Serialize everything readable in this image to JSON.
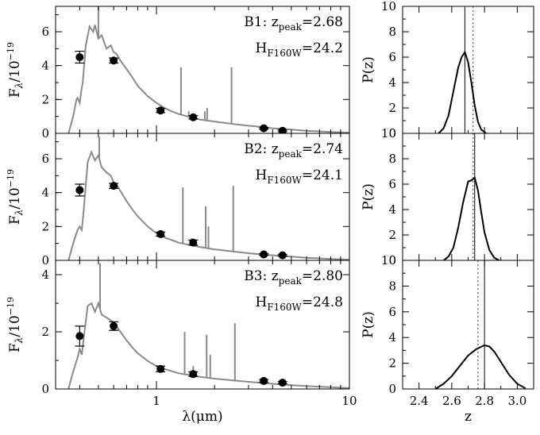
{
  "figure": {
    "type": "multi-panel",
    "xlabel_sed": "λ(μm)",
    "xlabel_pz": "z",
    "colors": {
      "sed": "#8a8a8a",
      "points": "#000000",
      "pz": "#000000",
      "frame": "#000000"
    }
  },
  "chart_data": [
    {
      "type": "line",
      "panel": "B1-SED",
      "ylabel": "Fλ/10⁻¹⁹",
      "ylabel_main": "F",
      "ylabel_sub": "λ",
      "ylabel_rest": "/10",
      "ylabel_sup": "−19",
      "xscale": "log",
      "xlim": [
        0.3,
        10
      ],
      "ylim": [
        0,
        7.5
      ],
      "xticks": [
        1,
        10
      ],
      "xticklabels": [
        "1",
        "10"
      ],
      "yticks": [
        0,
        2,
        4,
        6
      ],
      "yticklabels": [
        "0",
        "2",
        "4",
        "6"
      ],
      "label": "B1",
      "zpeak": "2.68",
      "hmag": "24.2",
      "model": {
        "x": [
          0.35,
          0.37,
          0.385,
          0.39,
          0.4,
          0.41,
          0.415,
          0.43,
          0.45,
          0.47,
          0.48,
          0.5,
          0.52,
          0.55,
          0.58,
          0.6,
          0.62,
          0.65,
          0.7,
          0.75,
          0.8,
          0.9,
          1.0,
          1.1,
          1.2,
          1.3,
          1.5,
          1.7,
          2.0,
          2.5,
          3.0,
          3.5,
          4.0,
          5.0,
          6.0,
          8.0,
          10.0
        ],
        "y": [
          0.0,
          1.0,
          2.0,
          2.1,
          1.8,
          2.7,
          3.0,
          5.2,
          6.3,
          6.0,
          6.4,
          5.6,
          5.8,
          5.0,
          5.2,
          4.8,
          4.7,
          4.3,
          3.8,
          3.3,
          2.8,
          2.2,
          1.8,
          1.5,
          1.3,
          1.15,
          0.95,
          0.8,
          0.7,
          0.55,
          0.45,
          0.38,
          0.3,
          0.22,
          0.15,
          0.08,
          0.04
        ]
      },
      "spikes": [
        {
          "x": 0.5,
          "y": 7.5
        },
        {
          "x": 1.34,
          "y": 3.9
        },
        {
          "x": 1.47,
          "y": 1.3
        },
        {
          "x": 1.78,
          "y": 1.3
        },
        {
          "x": 1.83,
          "y": 1.5
        },
        {
          "x": 2.45,
          "y": 3.9
        }
      ],
      "points": [
        {
          "x": 0.4,
          "y": 4.5,
          "err": 0.35
        },
        {
          "x": 0.6,
          "y": 4.3,
          "err": 0.15
        },
        {
          "x": 1.05,
          "y": 1.35,
          "err": 0.12
        },
        {
          "x": 1.55,
          "y": 0.95,
          "err": 0.1
        },
        {
          "x": 3.6,
          "y": 0.3,
          "err": 0.05
        },
        {
          "x": 4.5,
          "y": 0.15,
          "err": 0.05
        }
      ]
    },
    {
      "type": "line",
      "panel": "B1-Pz",
      "ylabel": "P(z)",
      "xlim": [
        2.3,
        3.1
      ],
      "ylim": [
        0,
        10
      ],
      "xticks": [
        2.4,
        2.6,
        2.8,
        3.0
      ],
      "xticklabels": [
        "2.4",
        "2.6",
        "2.8",
        "3.0"
      ],
      "yticks": [
        0,
        2,
        4,
        6,
        8,
        10
      ],
      "yticklabels": [
        "0",
        "2",
        "4",
        "6",
        "8",
        "10"
      ],
      "zpeak_line": 2.68,
      "dotted_line": 2.73,
      "pz": {
        "x": [
          2.52,
          2.55,
          2.58,
          2.61,
          2.64,
          2.66,
          2.68,
          2.7,
          2.72,
          2.74,
          2.76,
          2.78,
          2.81
        ],
        "y": [
          0.0,
          0.4,
          1.4,
          3.3,
          5.2,
          6.0,
          6.4,
          5.6,
          4.0,
          2.2,
          0.9,
          0.3,
          0.0
        ]
      }
    },
    {
      "type": "line",
      "panel": "B2-SED",
      "ylabel": "Fλ/10⁻¹⁹",
      "ylabel_main": "F",
      "ylabel_sub": "λ",
      "ylabel_rest": "/10",
      "ylabel_sup": "−19",
      "xscale": "log",
      "xlim": [
        0.3,
        10
      ],
      "ylim": [
        0,
        7.5
      ],
      "xticks": [
        1,
        10
      ],
      "xticklabels": [
        "1",
        "10"
      ],
      "yticks": [
        0,
        2,
        4,
        6
      ],
      "yticklabels": [
        "0",
        "2",
        "4",
        "6"
      ],
      "label": "B2",
      "zpeak": "2.74",
      "hmag": "24.1",
      "model": {
        "x": [
          0.35,
          0.37,
          0.39,
          0.4,
          0.41,
          0.42,
          0.44,
          0.46,
          0.48,
          0.5,
          0.52,
          0.55,
          0.58,
          0.6,
          0.62,
          0.65,
          0.7,
          0.75,
          0.8,
          0.9,
          1.0,
          1.1,
          1.2,
          1.3,
          1.5,
          1.7,
          2.0,
          2.5,
          3.0,
          3.5,
          4.0,
          5.0,
          6.0,
          8.0,
          10.0
        ],
        "y": [
          0.0,
          1.0,
          1.8,
          2.0,
          1.8,
          3.0,
          5.8,
          6.4,
          5.9,
          6.2,
          5.5,
          5.2,
          5.0,
          4.6,
          4.5,
          4.1,
          3.5,
          3.0,
          2.6,
          2.0,
          1.6,
          1.35,
          1.2,
          1.05,
          0.9,
          0.78,
          0.65,
          0.52,
          0.42,
          0.35,
          0.3,
          0.22,
          0.15,
          0.08,
          0.04
        ]
      },
      "spikes": [
        {
          "x": 0.505,
          "y": 7.3
        },
        {
          "x": 1.37,
          "y": 4.3
        },
        {
          "x": 1.52,
          "y": 1.3
        },
        {
          "x": 1.8,
          "y": 3.2
        },
        {
          "x": 1.86,
          "y": 2.0
        },
        {
          "x": 2.5,
          "y": 4.4
        }
      ],
      "points": [
        {
          "x": 0.4,
          "y": 4.15,
          "err": 0.35
        },
        {
          "x": 0.6,
          "y": 4.4,
          "err": 0.15
        },
        {
          "x": 1.05,
          "y": 1.55,
          "err": 0.12
        },
        {
          "x": 1.55,
          "y": 1.05,
          "err": 0.15
        },
        {
          "x": 3.6,
          "y": 0.35,
          "err": 0.05
        },
        {
          "x": 4.5,
          "y": 0.3,
          "err": 0.05
        }
      ]
    },
    {
      "type": "line",
      "panel": "B2-Pz",
      "ylabel": "P(z)",
      "xlim": [
        2.3,
        3.1
      ],
      "ylim": [
        0,
        10
      ],
      "xticks": [
        2.4,
        2.6,
        2.8,
        3.0
      ],
      "xticklabels": [
        "2.4",
        "2.6",
        "2.8",
        "3.0"
      ],
      "yticks": [
        0,
        2,
        4,
        6,
        8,
        10
      ],
      "yticklabels": [
        "0",
        "2",
        "4",
        "6",
        "8",
        "10"
      ],
      "zpeak_line": 2.74,
      "dotted_line": 2.73,
      "pz": {
        "x": [
          2.55,
          2.58,
          2.61,
          2.64,
          2.67,
          2.7,
          2.72,
          2.74,
          2.76,
          2.78,
          2.8,
          2.83,
          2.86,
          2.89
        ],
        "y": [
          0.0,
          0.3,
          1.0,
          2.6,
          4.6,
          6.2,
          6.3,
          6.5,
          5.5,
          3.8,
          2.2,
          0.8,
          0.2,
          0.0
        ]
      }
    },
    {
      "type": "line",
      "panel": "B3-SED",
      "ylabel": "Fλ/10⁻¹⁹",
      "ylabel_main": "F",
      "ylabel_sub": "λ",
      "ylabel_rest": "/10",
      "ylabel_sup": "−19",
      "xscale": "log",
      "xlim": [
        0.3,
        10
      ],
      "ylim": [
        0,
        4.5
      ],
      "xticks": [
        1,
        10
      ],
      "xticklabels": [
        "1",
        "10"
      ],
      "yticks": [
        0,
        2,
        4
      ],
      "yticklabels": [
        "0",
        "2",
        "4"
      ],
      "label": "B3",
      "zpeak": "2.80",
      "hmag": "24.8",
      "model": {
        "x": [
          0.35,
          0.37,
          0.39,
          0.4,
          0.41,
          0.42,
          0.44,
          0.46,
          0.48,
          0.5,
          0.52,
          0.55,
          0.58,
          0.6,
          0.62,
          0.65,
          0.7,
          0.75,
          0.8,
          0.9,
          1.0,
          1.1,
          1.2,
          1.3,
          1.5,
          1.7,
          2.0,
          2.5,
          3.0,
          3.5,
          4.0,
          5.0,
          6.0,
          8.0,
          10.0
        ],
        "y": [
          0.0,
          0.6,
          1.1,
          1.4,
          1.2,
          1.8,
          2.9,
          3.0,
          2.7,
          3.0,
          2.6,
          2.5,
          2.4,
          2.3,
          2.2,
          2.0,
          1.7,
          1.45,
          1.25,
          0.98,
          0.8,
          0.7,
          0.62,
          0.55,
          0.48,
          0.42,
          0.36,
          0.3,
          0.25,
          0.21,
          0.18,
          0.13,
          0.1,
          0.06,
          0.03
        ]
      },
      "spikes": [
        {
          "x": 0.51,
          "y": 4.4
        },
        {
          "x": 1.4,
          "y": 2.0
        },
        {
          "x": 1.55,
          "y": 0.8
        },
        {
          "x": 1.82,
          "y": 1.9
        },
        {
          "x": 1.9,
          "y": 1.2
        },
        {
          "x": 2.55,
          "y": 2.3
        }
      ],
      "points": [
        {
          "x": 0.4,
          "y": 1.85,
          "err": 0.35
        },
        {
          "x": 0.6,
          "y": 2.2,
          "err": 0.15
        },
        {
          "x": 1.05,
          "y": 0.7,
          "err": 0.1
        },
        {
          "x": 1.55,
          "y": 0.52,
          "err": 0.08
        },
        {
          "x": 3.6,
          "y": 0.28,
          "err": 0.05
        },
        {
          "x": 4.5,
          "y": 0.22,
          "err": 0.04
        }
      ]
    },
    {
      "type": "line",
      "panel": "B3-Pz",
      "ylabel": "P(z)",
      "xlim": [
        2.3,
        3.1
      ],
      "ylim": [
        0,
        10
      ],
      "xticks": [
        2.4,
        2.6,
        2.8,
        3.0
      ],
      "xticklabels": [
        "2.4",
        "2.6",
        "2.8",
        "3.0"
      ],
      "yticks": [
        0,
        2,
        4,
        6,
        8,
        10
      ],
      "yticklabels": [
        "0",
        "2",
        "4",
        "6",
        "8",
        "10"
      ],
      "zpeak_line": 2.8,
      "dotted_line": 2.76,
      "pz": {
        "x": [
          2.5,
          2.55,
          2.6,
          2.65,
          2.7,
          2.75,
          2.8,
          2.83,
          2.86,
          2.9,
          2.95,
          3.0,
          3.05
        ],
        "y": [
          0.0,
          0.4,
          1.0,
          1.8,
          2.6,
          3.1,
          3.4,
          3.3,
          2.9,
          2.1,
          1.1,
          0.4,
          0.05
        ]
      }
    }
  ]
}
